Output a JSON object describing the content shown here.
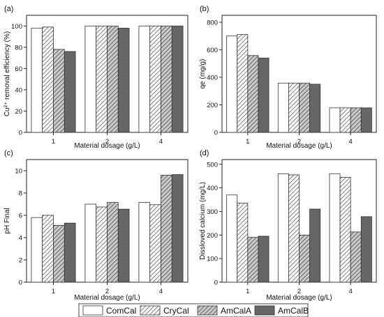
{
  "colors": {
    "ComCal": "#ffffff",
    "CryCal": "#ffffff",
    "AmCalA": "#c8c8c8",
    "AmCalB": "#666666",
    "axis": "#222222",
    "hatch": "#555555"
  },
  "legend": {
    "placement": "bottom-center",
    "entries": [
      "ComCal",
      "CryCal",
      "AmCalA",
      "AmCalB"
    ]
  },
  "chart_data": [
    {
      "panel": "(a)",
      "type": "bar",
      "xlabel": "Material dosage (g/L)",
      "ylabel": "Cu²⁺ removal efficiency (%)",
      "ylim": [
        0,
        110
      ],
      "yticks": [
        0,
        20,
        40,
        60,
        80,
        100
      ],
      "grid": false,
      "categories": [
        "1",
        "2",
        "4"
      ],
      "series": [
        {
          "name": "ComCal",
          "values": [
            98,
            100,
            100
          ]
        },
        {
          "name": "CryCal",
          "values": [
            99,
            100,
            100
          ]
        },
        {
          "name": "AmCalA",
          "values": [
            78,
            100,
            100
          ]
        },
        {
          "name": "AmCalB",
          "values": [
            76,
            98,
            100
          ]
        }
      ]
    },
    {
      "panel": "(b)",
      "type": "bar",
      "xlabel": "Material dosage (g/L)",
      "ylabel": "qe (mg/g)",
      "ylim": [
        0,
        850
      ],
      "yticks": [
        0,
        200,
        400,
        600,
        800
      ],
      "grid": false,
      "categories": [
        "1",
        "2",
        "4"
      ],
      "series": [
        {
          "name": "ComCal",
          "values": [
            700,
            358,
            178
          ]
        },
        {
          "name": "CryCal",
          "values": [
            710,
            358,
            178
          ]
        },
        {
          "name": "AmCalA",
          "values": [
            558,
            358,
            178
          ]
        },
        {
          "name": "AmCalB",
          "values": [
            540,
            350,
            178
          ]
        }
      ]
    },
    {
      "panel": "(c)",
      "type": "bar",
      "xlabel": "Material dosage (g/L)",
      "ylabel": "pH Final",
      "ylim": [
        0,
        11
      ],
      "yticks": [
        0,
        2,
        4,
        6,
        8,
        10
      ],
      "grid": false,
      "categories": [
        "1",
        "2",
        "4"
      ],
      "series": [
        {
          "name": "ComCal",
          "values": [
            5.8,
            7.0,
            7.15
          ]
        },
        {
          "name": "CryCal",
          "values": [
            6.0,
            6.75,
            6.95
          ]
        },
        {
          "name": "AmCalA",
          "values": [
            5.1,
            7.15,
            9.6
          ]
        },
        {
          "name": "AmCalB",
          "values": [
            5.3,
            6.55,
            9.65
          ]
        }
      ]
    },
    {
      "panel": "(d)",
      "type": "bar",
      "xlabel": "Material dosage (g/L)",
      "ylabel": "Dissloved calcium (mg/L)",
      "ylim": [
        0,
        520
      ],
      "yticks": [
        0,
        100,
        200,
        300,
        400,
        500
      ],
      "grid": false,
      "categories": [
        "1",
        "2",
        "4"
      ],
      "series": [
        {
          "name": "ComCal",
          "values": [
            370,
            460,
            460
          ]
        },
        {
          "name": "CryCal",
          "values": [
            335,
            455,
            445
          ]
        },
        {
          "name": "AmCalA",
          "values": [
            190,
            200,
            213
          ]
        },
        {
          "name": "AmCalB",
          "values": [
            195,
            310,
            278
          ]
        }
      ]
    }
  ]
}
